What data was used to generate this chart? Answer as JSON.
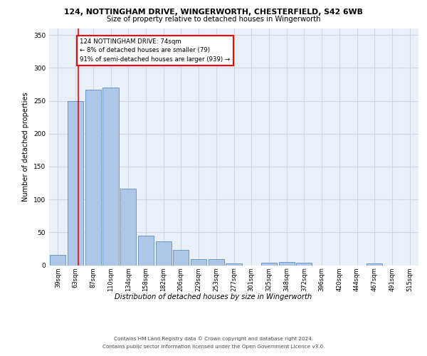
{
  "title1": "124, NOTTINGHAM DRIVE, WINGERWORTH, CHESTERFIELD, S42 6WB",
  "title2": "Size of property relative to detached houses in Wingerworth",
  "xlabel": "Distribution of detached houses by size in Wingerworth",
  "ylabel": "Number of detached properties",
  "bins": [
    "39sqm",
    "63sqm",
    "87sqm",
    "110sqm",
    "134sqm",
    "158sqm",
    "182sqm",
    "206sqm",
    "229sqm",
    "253sqm",
    "277sqm",
    "301sqm",
    "325sqm",
    "348sqm",
    "372sqm",
    "396sqm",
    "420sqm",
    "444sqm",
    "467sqm",
    "491sqm",
    "515sqm"
  ],
  "bar_values": [
    16,
    250,
    267,
    270,
    116,
    45,
    36,
    23,
    9,
    9,
    3,
    0,
    4,
    5,
    4,
    0,
    0,
    0,
    3,
    0,
    0
  ],
  "bar_color": "#aec6e8",
  "bar_edge_color": "#5a8fc0",
  "grid_color": "#d0d8e8",
  "bg_color": "#eaf0f8",
  "red_line_x": 1.15,
  "annotation_text": "124 NOTTINGHAM DRIVE: 74sqm\n← 8% of detached houses are smaller (79)\n91% of semi-detached houses are larger (939) →",
  "annotation_box_color": "white",
  "annotation_edge_color": "red",
  "ylim": [
    0,
    360
  ],
  "yticks": [
    0,
    50,
    100,
    150,
    200,
    250,
    300,
    350
  ],
  "footer1": "Contains HM Land Registry data © Crown copyright and database right 2024.",
  "footer2": "Contains public sector information licensed under the Open Government Licence v3.0."
}
